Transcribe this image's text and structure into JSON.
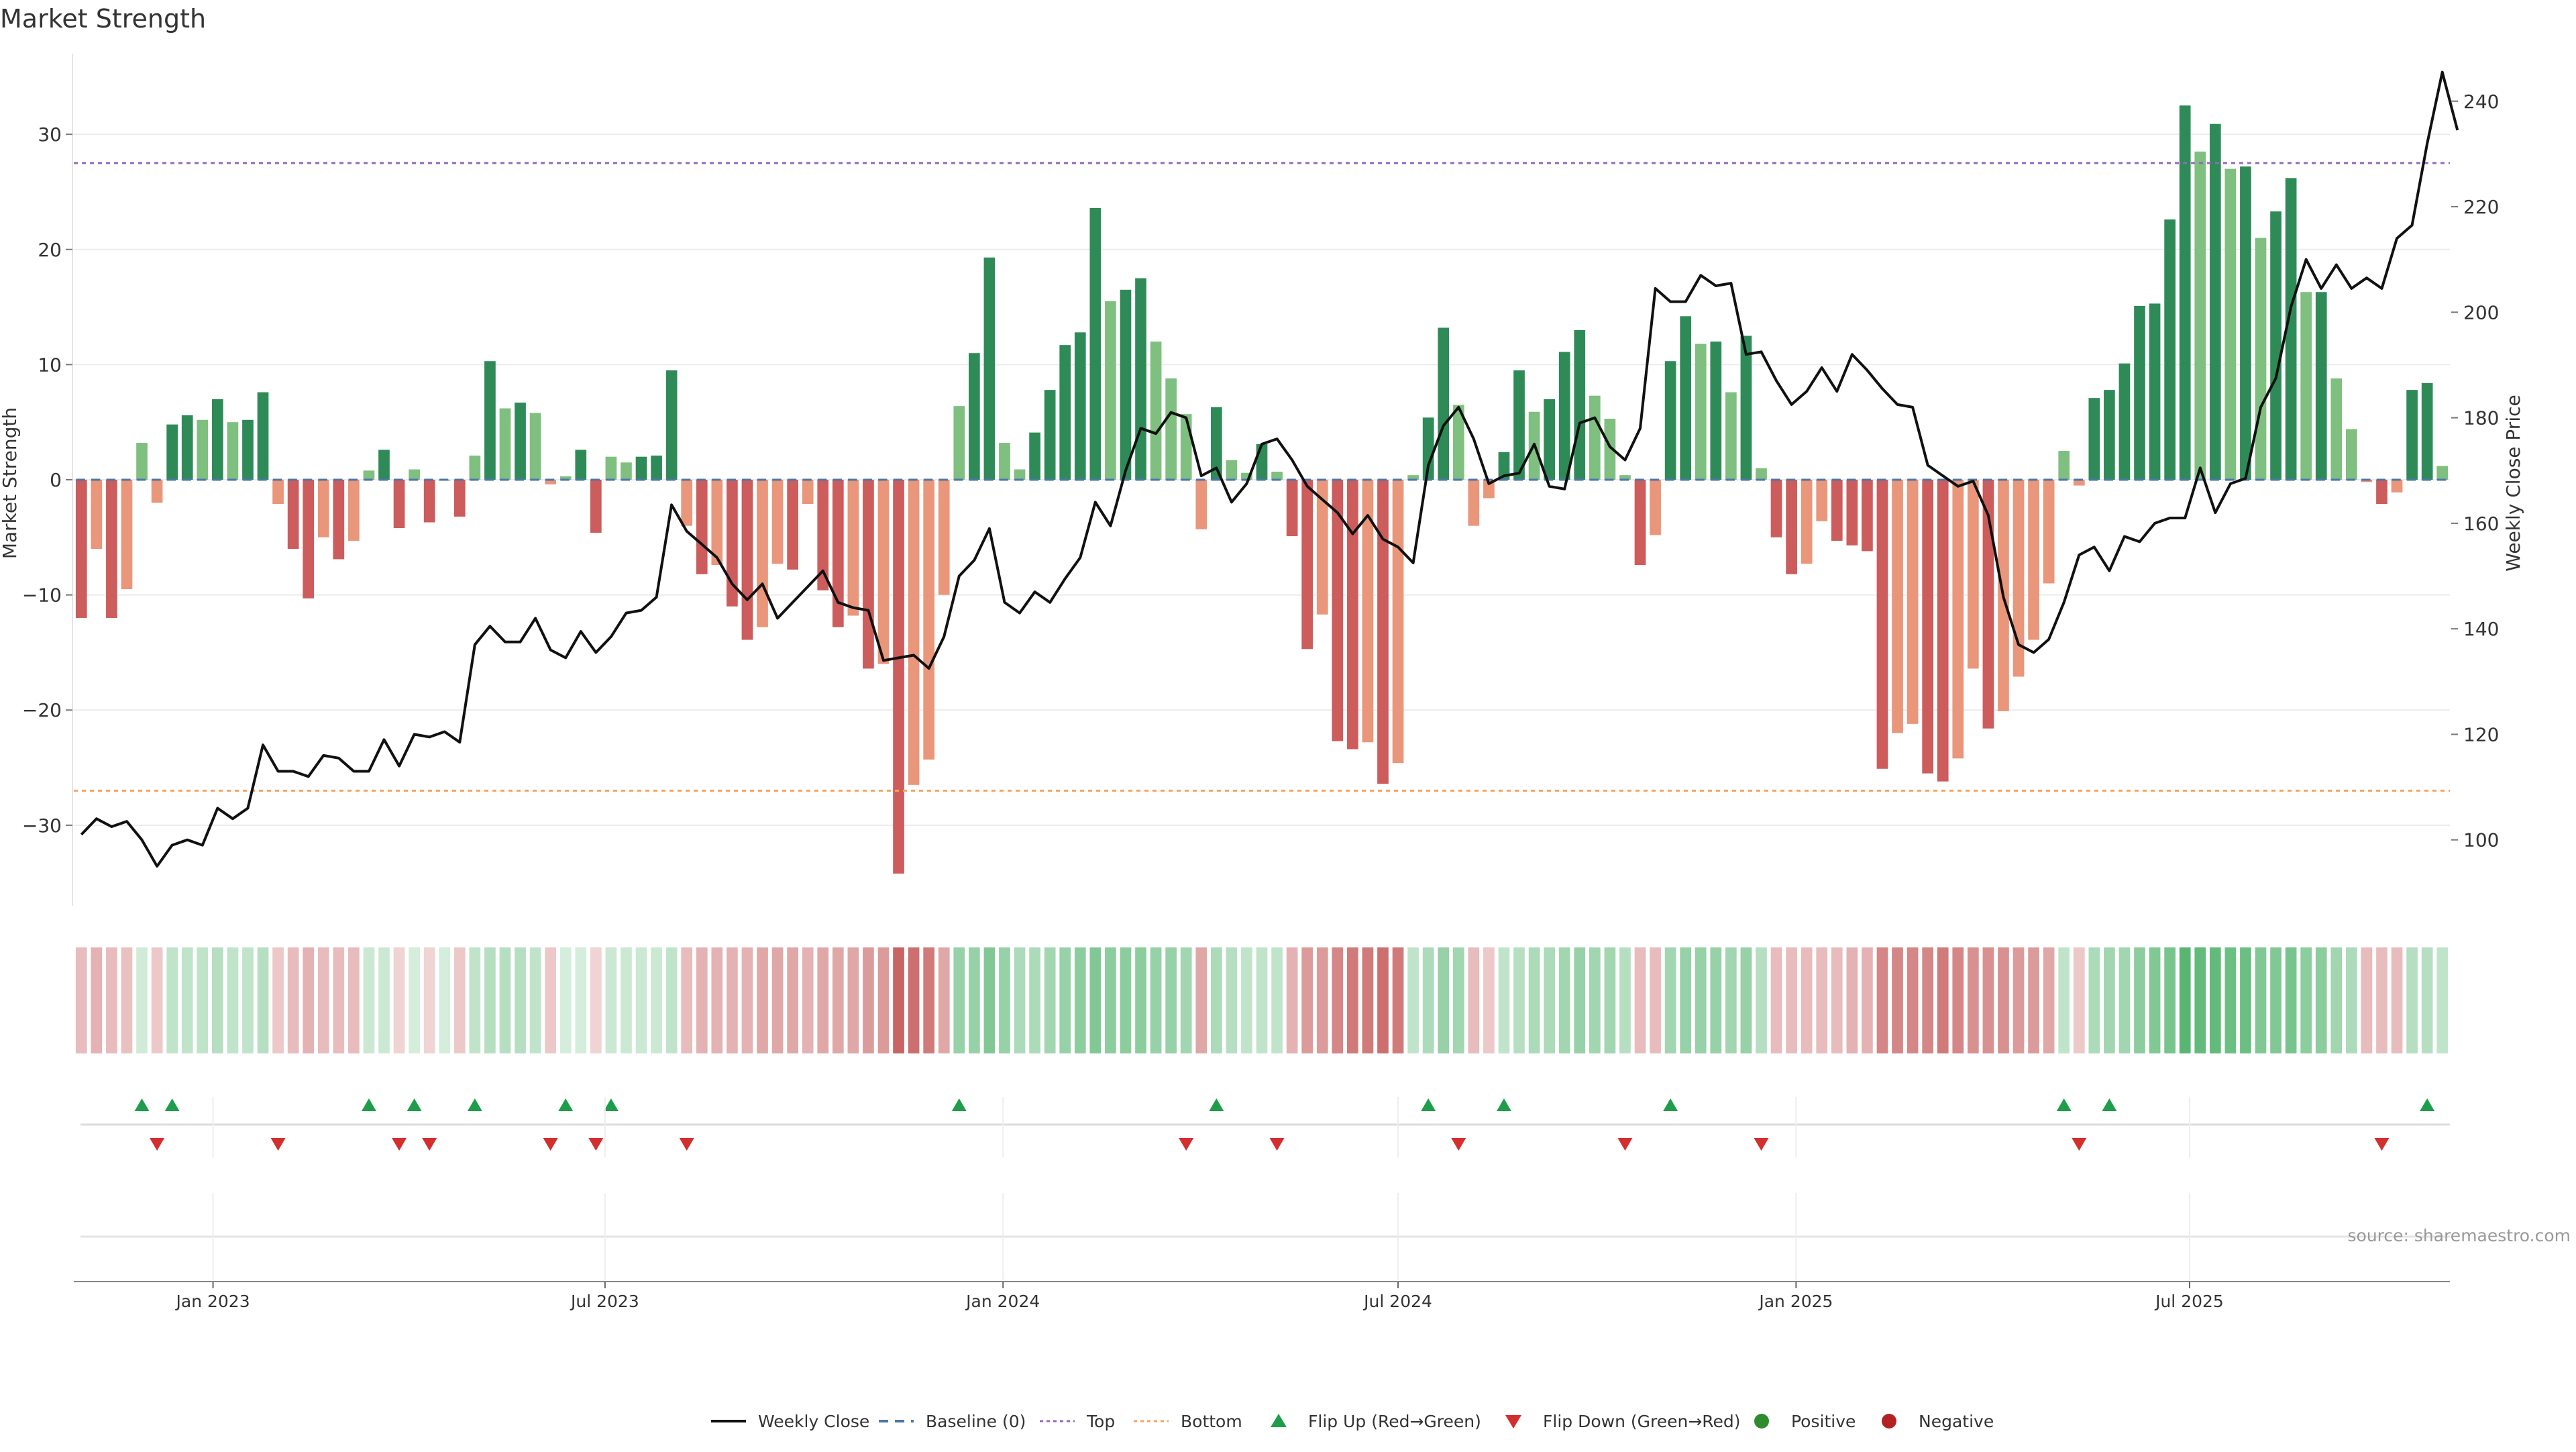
{
  "chart_data": {
    "type": "bar",
    "title": "Market Strength",
    "ylabel_left": "Market Strength",
    "ylabel_right": "Weekly Close Price",
    "left_axis": {
      "range": [
        -37,
        37
      ],
      "ticks": [
        30,
        20,
        10,
        0,
        -10,
        -20,
        -30
      ]
    },
    "right_axis": {
      "range": [
        87.5,
        249
      ],
      "ticks": [
        240,
        220,
        200,
        180,
        160,
        140,
        120,
        100
      ]
    },
    "top_threshold": 27.5,
    "bottom_threshold": -27,
    "x_tick_labels": [
      "Jan 2023",
      "Jul 2023",
      "Jan 2024",
      "Jul 2024",
      "Jan 2025",
      "Jul 2025"
    ],
    "x_tick_positions": [
      8.7,
      34.6,
      60.9,
      87,
      113.3,
      139.3
    ],
    "strength": [
      -12,
      -6,
      -12,
      -9.5,
      3.2,
      -2,
      4.8,
      5.6,
      5.2,
      7,
      5,
      5.2,
      7.6,
      -2.1,
      -6,
      -10.3,
      -5,
      -6.9,
      -5.3,
      0.8,
      2.6,
      -4.2,
      0.9,
      -3.7,
      0,
      -3.2,
      2.1,
      10.3,
      6.2,
      6.7,
      5.8,
      -0.4,
      0.3,
      2.6,
      -4.6,
      2,
      1.5,
      2,
      2.1,
      9.5,
      -4,
      -8.2,
      -7.4,
      -11,
      -13.9,
      -12.8,
      -7.3,
      -7.8,
      -2.1,
      -9.6,
      -12.8,
      -11.8,
      -16.4,
      -16,
      -34.2,
      -26.5,
      -24.3,
      -10,
      6.4,
      11,
      19.3,
      3.2,
      0.9,
      4.1,
      7.8,
      11.7,
      12.8,
      23.6,
      15.5,
      16.5,
      17.5,
      12,
      8.8,
      5.7,
      -4.3,
      6.3,
      1.7,
      0.6,
      3.1,
      0.7,
      -4.9,
      -14.7,
      -11.7,
      -22.7,
      -23.4,
      -22.8,
      -26.4,
      -24.6,
      0.4,
      5.4,
      13.2,
      6.5,
      -4,
      -1.6,
      2.4,
      9.5,
      5.9,
      7,
      11.1,
      13,
      7.3,
      5.3,
      0.4,
      -7.4,
      -4.8,
      10.3,
      14.2,
      11.8,
      12,
      7.6,
      12.5,
      1,
      -5,
      -8.2,
      -7.3,
      -3.6,
      -5.3,
      -5.7,
      -6.2,
      -25.1,
      -22,
      -21.2,
      -25.5,
      -26.2,
      -24.2,
      -16.4,
      -21.6,
      -20.1,
      -17.1,
      -13.9,
      -9,
      2.5,
      -0.5,
      7.1,
      7.8,
      10.1,
      15.1,
      15.3,
      22.6,
      32.5,
      28.5,
      30.9,
      27,
      27.2,
      21,
      23.3,
      26.2,
      16.3,
      16.3,
      8.8,
      4.4,
      -0.2,
      -2.1,
      -1.1,
      7.8,
      8.4,
      1.2
    ],
    "weekly_close": [
      101,
      104,
      102.5,
      103.5,
      100,
      95,
      99,
      100,
      99,
      106,
      104,
      106,
      118,
      113,
      113,
      112,
      116,
      115.5,
      113,
      113,
      119,
      114,
      120,
      119.5,
      120.5,
      118.5,
      137,
      140.5,
      137.5,
      137.5,
      142,
      136,
      134.5,
      139.5,
      135.5,
      138.5,
      143,
      143.5,
      146,
      163.5,
      158.5,
      156,
      153.5,
      148.5,
      145.5,
      148.5,
      142,
      145,
      148,
      151,
      145,
      144,
      143.5,
      134,
      134.5,
      135,
      132.5,
      138.5,
      150,
      153,
      159,
      145,
      143,
      147,
      145,
      149.5,
      153.5,
      164,
      159.5,
      170,
      178,
      177,
      181,
      180,
      169,
      170.5,
      164,
      167.5,
      175,
      176,
      172,
      167,
      164.5,
      162,
      158,
      161.5,
      157,
      155.5,
      152.5,
      171,
      178.5,
      182,
      176,
      167.5,
      169,
      169.5,
      175,
      167,
      166.5,
      179,
      180,
      174.5,
      172,
      178,
      204.5,
      202,
      202,
      207,
      205,
      205.5,
      192,
      192.5,
      187,
      182.5,
      185,
      189.5,
      185,
      192,
      189,
      185.5,
      182.5,
      182,
      171,
      169,
      167,
      168,
      161.5,
      146,
      137,
      135.5,
      138,
      145,
      154,
      155.5,
      151,
      157.5,
      156.5,
      160,
      161,
      161,
      170.5,
      162,
      167.5,
      168.5,
      182,
      187.5,
      201,
      210,
      204.5,
      209,
      204.5,
      206.5,
      204.5,
      214,
      216.5,
      232,
      245.5,
      234.5
    ],
    "mood_intensity": [
      0.3,
      0.35,
      0.3,
      0.28,
      0.22,
      0.25,
      0.3,
      0.3,
      0.3,
      0.35,
      0.3,
      0.3,
      0.35,
      0.25,
      0.3,
      0.35,
      0.3,
      0.3,
      0.3,
      0.25,
      0.25,
      0.2,
      0.2,
      0.2,
      0.2,
      0.25,
      0.3,
      0.35,
      0.35,
      0.35,
      0.3,
      0.25,
      0.2,
      0.2,
      0.2,
      0.25,
      0.25,
      0.25,
      0.25,
      0.3,
      0.3,
      0.35,
      0.35,
      0.35,
      0.35,
      0.4,
      0.4,
      0.4,
      0.35,
      0.4,
      0.4,
      0.4,
      0.45,
      0.45,
      0.7,
      0.65,
      0.6,
      0.4,
      0.5,
      0.5,
      0.6,
      0.5,
      0.4,
      0.4,
      0.45,
      0.5,
      0.55,
      0.6,
      0.55,
      0.55,
      0.55,
      0.5,
      0.5,
      0.45,
      0.4,
      0.4,
      0.35,
      0.3,
      0.3,
      0.3,
      0.35,
      0.45,
      0.45,
      0.55,
      0.6,
      0.6,
      0.65,
      0.6,
      0.3,
      0.4,
      0.5,
      0.45,
      0.3,
      0.25,
      0.3,
      0.35,
      0.4,
      0.4,
      0.45,
      0.5,
      0.45,
      0.45,
      0.35,
      0.3,
      0.3,
      0.45,
      0.5,
      0.5,
      0.5,
      0.45,
      0.5,
      0.35,
      0.3,
      0.3,
      0.3,
      0.3,
      0.3,
      0.35,
      0.35,
      0.55,
      0.55,
      0.55,
      0.55,
      0.6,
      0.55,
      0.5,
      0.5,
      0.5,
      0.45,
      0.45,
      0.4,
      0.3,
      0.25,
      0.4,
      0.45,
      0.45,
      0.55,
      0.6,
      0.65,
      0.8,
      0.75,
      0.75,
      0.7,
      0.7,
      0.6,
      0.6,
      0.65,
      0.55,
      0.55,
      0.45,
      0.4,
      0.3,
      0.3,
      0.3,
      0.35,
      0.35,
      0.3
    ],
    "flip_up_indices": [
      4,
      6,
      19,
      22,
      26,
      32,
      35,
      58,
      75,
      89,
      94,
      105,
      131,
      134,
      155
    ],
    "flip_down_indices": [
      5,
      13,
      21,
      23,
      31,
      34,
      40,
      73,
      79,
      91,
      102,
      111,
      132,
      152
    ],
    "source": "source: sharemaestro.com",
    "legend": [
      "Weekly Close",
      "Baseline (0)",
      "Top",
      "Bottom",
      "Flip Up (Red→Green)",
      "Flip Down (Green→Red)",
      "Positive",
      "Negative"
    ],
    "colors": {
      "strong_green": "#2e8b57",
      "light_green": "#7fbf7f",
      "strong_red": "#cd5c5c",
      "light_red": "#e9967a",
      "price_line": "#111111",
      "top_line": "#9467bd",
      "bottom_line": "#f4a460",
      "baseline": "#4a76b0",
      "flip_up": "#1e9e4a",
      "flip_down": "#d32f2f",
      "positive_dot": "#2e8b2e",
      "negative_dot": "#b22222"
    }
  }
}
